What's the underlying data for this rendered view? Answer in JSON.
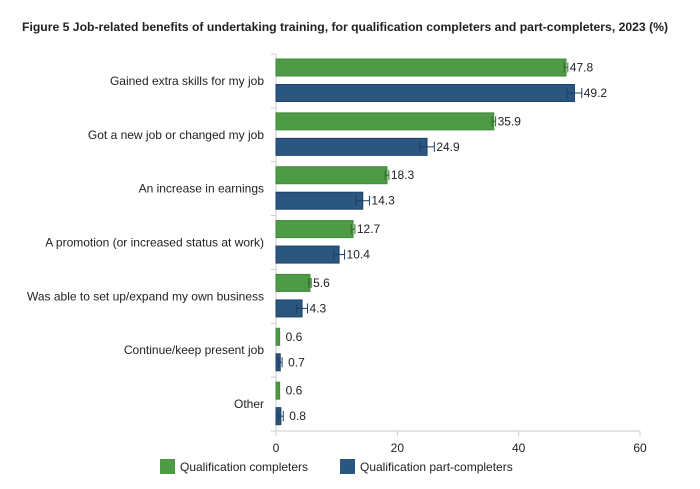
{
  "chart_data": {
    "type": "bar",
    "orientation": "horizontal",
    "title": "Figure 5 Job-related benefits of undertaking training, for qualification completers and part-completers, 2023 (%)",
    "categories": [
      "Gained extra skills for my job",
      "Got a new job or changed my job",
      "An increase in earnings",
      "A promotion (or increased status at work)",
      "Was able to set up/expand my own business",
      "Continue/keep present job",
      "Other"
    ],
    "series": [
      {
        "name": "Qualification completers",
        "color": "#4e9a45",
        "values": [
          47.8,
          35.9,
          18.3,
          12.7,
          5.6,
          0.6,
          0.6
        ],
        "error": [
          0.3,
          0.3,
          0.3,
          0.3,
          0.2,
          0,
          0
        ]
      },
      {
        "name": "Qualification part-completers",
        "color": "#2a5680",
        "values": [
          49.2,
          24.9,
          14.3,
          10.4,
          4.3,
          0.7,
          0.8
        ],
        "error": [
          1.2,
          1.2,
          1.1,
          0.9,
          0.9,
          0.3,
          0.4
        ]
      }
    ],
    "data_labels": [
      [
        "47.8",
        "35.9",
        "18.3",
        "12.7",
        "5.6",
        "0.6",
        "0.6"
      ],
      [
        "49.2",
        "24.9",
        "14.3",
        "10.4",
        "4.3",
        "0.7",
        "0.8"
      ]
    ],
    "xlim": [
      0,
      60
    ],
    "xticks": [
      "0",
      "20",
      "40",
      "60"
    ],
    "xlabel": "",
    "ylabel": "",
    "grid": false,
    "legend_position": "bottom"
  }
}
